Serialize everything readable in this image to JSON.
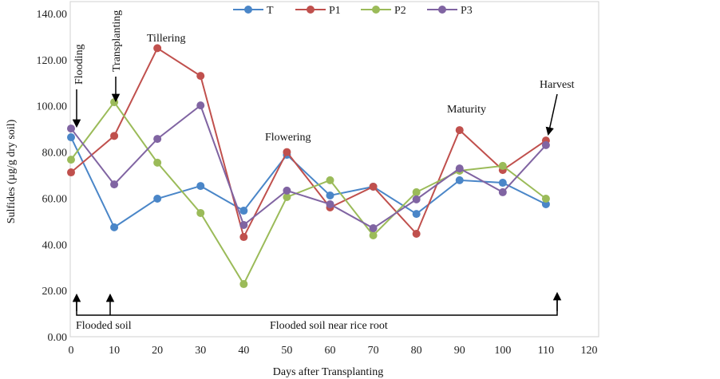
{
  "chart_data": {
    "type": "line",
    "title": "",
    "xlabel": "Days after Transplanting",
    "ylabel": "Sulfides (µg/g dry soil)",
    "xlim": [
      0,
      120
    ],
    "ylim": [
      0,
      140
    ],
    "x_ticks": [
      "0",
      "10",
      "20",
      "30",
      "40",
      "50",
      "60",
      "70",
      "80",
      "90",
      "100",
      "110",
      "120"
    ],
    "y_ticks": [
      "0.00",
      "20.00",
      "40.00",
      "60.00",
      "80.00",
      "100.00",
      "120.00",
      "140.00"
    ],
    "grid": false,
    "legend_position": "top",
    "x": [
      0,
      10,
      20,
      30,
      40,
      50,
      60,
      70,
      80,
      90,
      100,
      110
    ],
    "series": [
      {
        "name": "T",
        "color": "#4a86c8",
        "values": [
          86.4,
          47.4,
          59.8,
          65.3,
          54.6,
          78.8,
          61.2,
          65.0,
          53.2,
          67.8,
          66.7,
          57.4
        ]
      },
      {
        "name": "P1",
        "color": "#c0504d",
        "values": [
          71.2,
          87.0,
          125.0,
          113.0,
          43.2,
          80.0,
          56.0,
          65.0,
          44.6,
          89.5,
          72.2,
          85.0
        ]
      },
      {
        "name": "P2",
        "color": "#9bbb59",
        "values": [
          76.7,
          101.6,
          75.4,
          53.6,
          22.8,
          60.5,
          67.8,
          43.9,
          62.6,
          71.9,
          74.0,
          59.8
        ]
      },
      {
        "name": "P3",
        "color": "#8064a2",
        "values": [
          90.2,
          66.0,
          85.7,
          100.2,
          48.4,
          63.3,
          57.4,
          47.0,
          59.5,
          72.9,
          62.6,
          83.0
        ]
      }
    ],
    "annotations": {
      "flooding": "Flooding",
      "transplanting": "Transplanting",
      "tillering": "Tillering",
      "flowering": "Flowering",
      "maturity": "Maturity",
      "harvest": "Harvest",
      "flooded_soil": "Flooded soil",
      "flooded_root": "Flooded soil near rice root"
    }
  }
}
